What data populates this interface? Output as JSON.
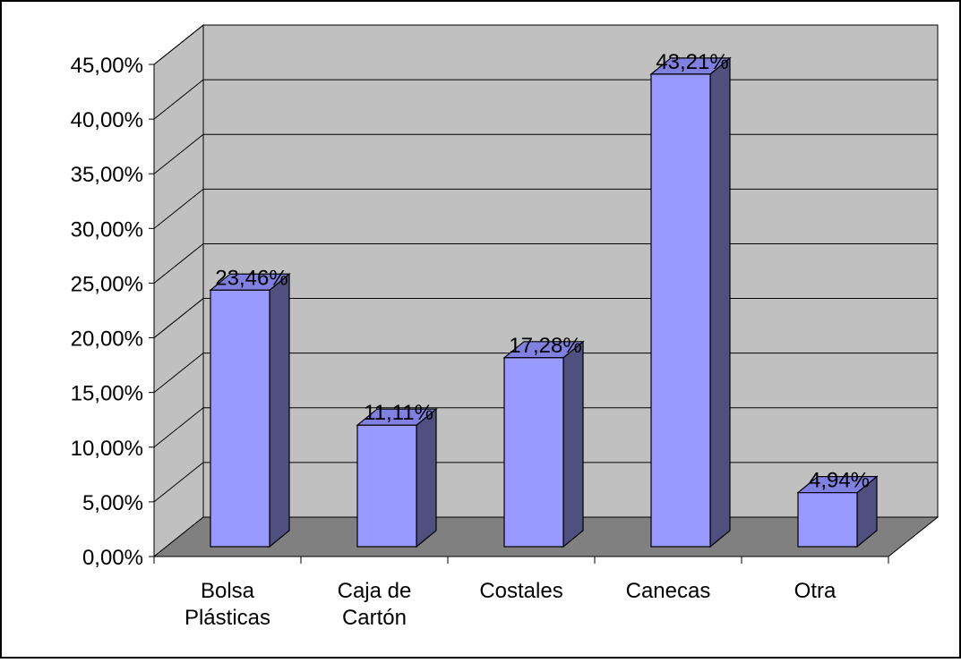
{
  "chart_data": {
    "type": "bar",
    "style": "3d-column",
    "categories": [
      [
        "Bolsa",
        "Plásticas"
      ],
      [
        "Caja de",
        "Cartón"
      ],
      [
        "Costales"
      ],
      [
        "Canecas"
      ],
      [
        "Otra"
      ]
    ],
    "values": [
      23.46,
      11.11,
      17.28,
      43.21,
      4.94
    ],
    "data_labels": [
      "23,46%",
      "11,11%",
      "17,28%",
      "43,21%",
      "4,94%"
    ],
    "y_ticks": [
      "0,00%",
      "5,00%",
      "10,00%",
      "15,00%",
      "20,00%",
      "25,00%",
      "30,00%",
      "35,00%",
      "40,00%",
      "45,00%"
    ],
    "ylim": [
      0,
      45
    ],
    "title": "",
    "xlabel": "",
    "ylabel": "",
    "grid": true,
    "legend": "none",
    "colors": {
      "bar_front": "#9999ff",
      "bar_side": "#4f4f80",
      "bar_top": "#8080e0",
      "wall": "#c0c0c0",
      "floor": "#808080",
      "gridline": "#000000"
    }
  }
}
